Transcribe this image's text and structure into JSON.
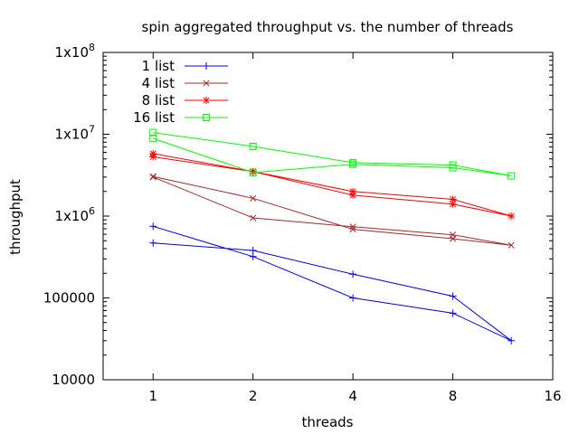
{
  "chart_data": {
    "type": "line",
    "title": "spin aggregated throughput vs. the number of threads",
    "xlabel": "threads",
    "ylabel": "throughput",
    "x_scale": "log2",
    "y_scale": "log10",
    "xlim": [
      0.707,
      16
    ],
    "ylim": [
      10000,
      100000000
    ],
    "x_ticks": [
      1,
      2,
      4,
      8,
      16
    ],
    "x_tick_labels": [
      "1",
      "2",
      "4",
      "8",
      "16"
    ],
    "y_ticks": [
      10000,
      100000,
      1000000,
      10000000,
      100000000
    ],
    "y_tick_labels": [
      "10000",
      "100000",
      "1x10",
      "1x10",
      "1x10"
    ],
    "y_tick_exponents": [
      "",
      "",
      "6",
      "7",
      "8"
    ],
    "grid": false,
    "legend_position": "top-left",
    "series": [
      {
        "name": "1 list",
        "color": "#0000ff",
        "marker": "plus",
        "x": [
          1,
          2,
          4,
          8,
          12,
          8,
          4,
          2,
          1
        ],
        "y": [
          750000,
          320000,
          100000,
          65000,
          30000,
          105000,
          195000,
          380000,
          470000
        ]
      },
      {
        "name": "4 list",
        "color": "#a52a2a",
        "marker": "cross",
        "x": [
          1,
          2,
          4,
          8,
          12,
          8,
          4,
          2,
          1
        ],
        "y": [
          3000000,
          950000,
          740000,
          590000,
          440000,
          530000,
          690000,
          1650000,
          3050000
        ]
      },
      {
        "name": "8 list",
        "color": "#ff0000",
        "marker": "star",
        "x": [
          1,
          2,
          4,
          8,
          12,
          8,
          4,
          2,
          1
        ],
        "y": [
          5800000,
          3500000,
          2000000,
          1600000,
          1000000,
          1400000,
          1800000,
          3500000,
          5300000
        ]
      },
      {
        "name": "16 list",
        "color": "#00ff00",
        "marker": "square",
        "x": [
          1,
          2,
          4,
          8,
          12,
          8,
          4,
          2,
          1
        ],
        "y": [
          10500000,
          7100000,
          4500000,
          4200000,
          3100000,
          3900000,
          4300000,
          3400000,
          8900000
        ]
      }
    ]
  }
}
